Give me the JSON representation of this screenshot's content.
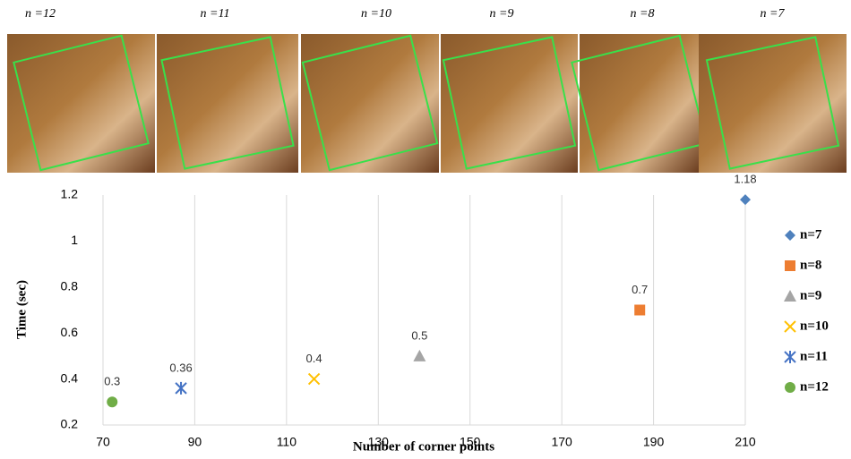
{
  "image_labels": [
    "n =12",
    "n =11",
    "n =10",
    "n =9",
    "n =8",
    "n =7"
  ],
  "chart_data": {
    "type": "scatter",
    "x_label": "Number of corner points",
    "y_label": "Time (sec)",
    "xlim": [
      70,
      210
    ],
    "xticks": [
      70,
      90,
      110,
      130,
      150,
      170,
      190,
      210
    ],
    "ylim": [
      0.2,
      1.2
    ],
    "yticks": [
      0.2,
      0.4,
      0.6,
      0.8,
      1,
      1.2
    ],
    "grid": "x",
    "legend": "right",
    "series": [
      {
        "name": "n=7",
        "color": "#4f81bd",
        "marker": "diamond",
        "x": [
          210
        ],
        "values": [
          1.18
        ]
      },
      {
        "name": "n=8",
        "color": "#ed7d31",
        "marker": "square",
        "x": [
          187
        ],
        "values": [
          0.7
        ]
      },
      {
        "name": "n=9",
        "color": "#a5a5a5",
        "marker": "triangle",
        "x": [
          139
        ],
        "values": [
          0.5
        ]
      },
      {
        "name": "n=10",
        "color": "#ffc000",
        "marker": "x",
        "x": [
          116
        ],
        "values": [
          0.4
        ]
      },
      {
        "name": "n=11",
        "color": "#4472c4",
        "marker": "asterisk",
        "x": [
          87
        ],
        "values": [
          0.36
        ]
      },
      {
        "name": "n=12",
        "color": "#70ad47",
        "marker": "circle",
        "x": [
          72
        ],
        "values": [
          0.3
        ]
      }
    ]
  }
}
